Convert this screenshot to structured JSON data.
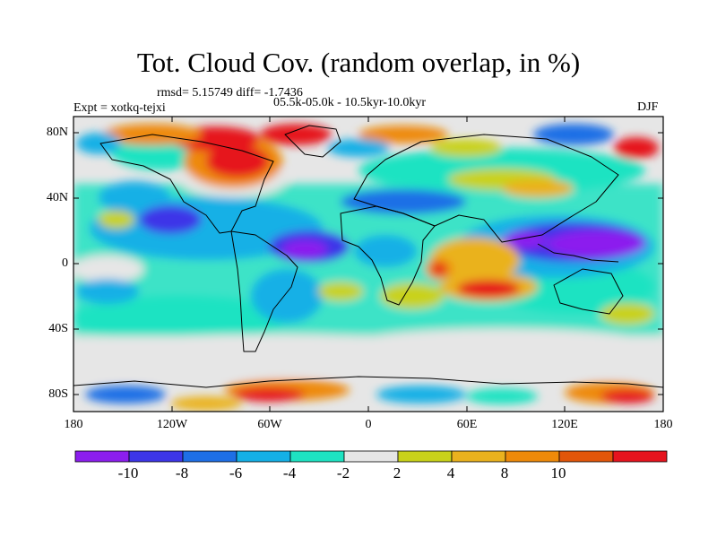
{
  "header": {
    "title": "Tot. Cloud Cov. (random overlap, in %)",
    "stats": "rmsd= 5.15749 diff= -1.7436",
    "experiment": "Expt = xotkq-tejxi",
    "period": "05.5k-05.0k - 10.5kyr-10.0kyr",
    "season": "DJF"
  },
  "map": {
    "lat_ticks": [
      "80N",
      "40N",
      "0",
      "40S",
      "80S"
    ],
    "lon_ticks": [
      "180",
      "120W",
      "60W",
      "0",
      "60E",
      "120E",
      "180"
    ]
  },
  "colorbar": {
    "labels": [
      "-10",
      "-8",
      "-6",
      "-4",
      "-2",
      "2",
      "4",
      "8",
      "10"
    ],
    "colors": [
      "#8c1eee",
      "#3d36e8",
      "#1e6fe6",
      "#15b0e6",
      "#1ee3c2",
      "#e6e6e6",
      "#c9d21a",
      "#eab21e",
      "#ee8a0a",
      "#e2560a",
      "#e6141e"
    ]
  }
}
